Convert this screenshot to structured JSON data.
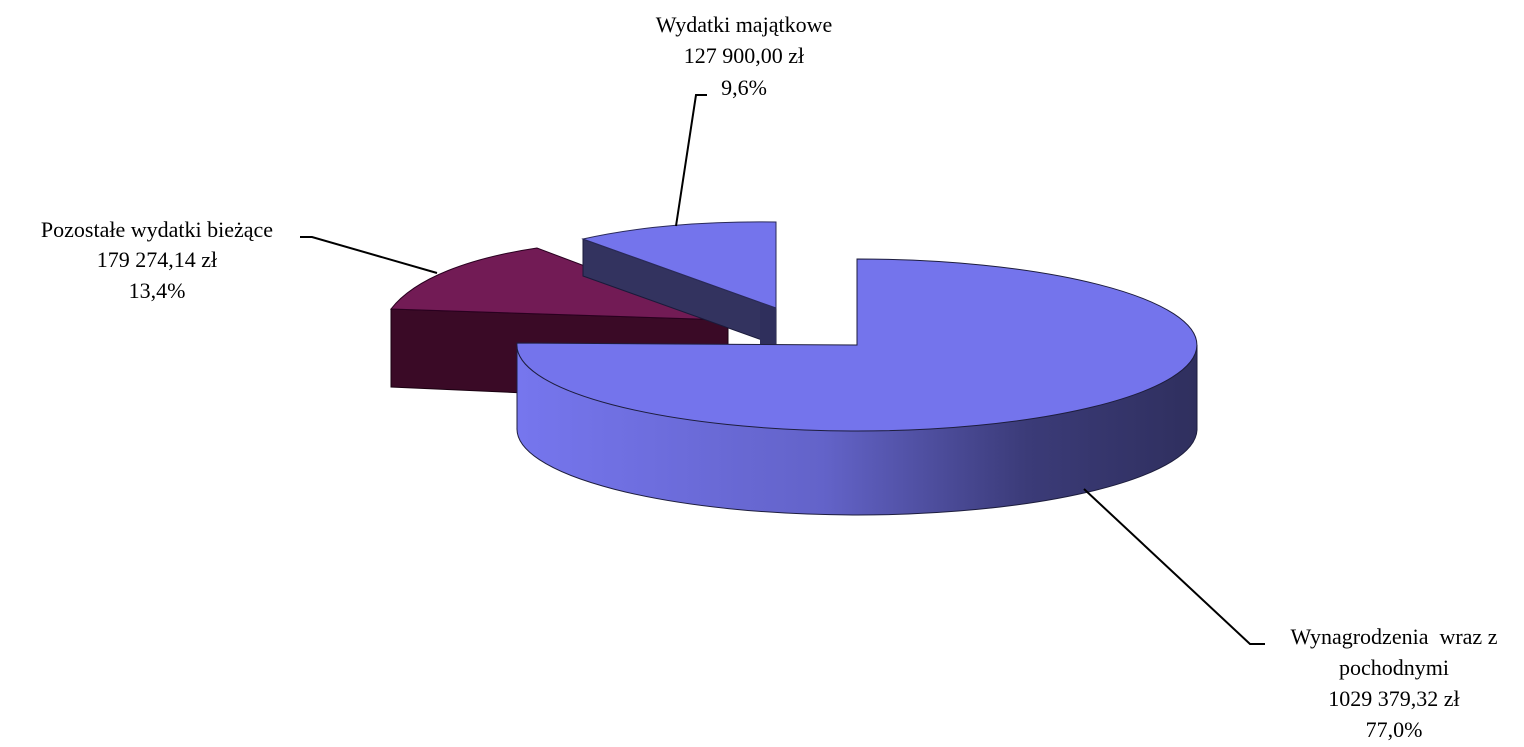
{
  "chart_data": {
    "type": "pie",
    "style": "3d-exploded",
    "currency": "zł",
    "slices": [
      {
        "label_lines": [
          "Wynagrodzenia  wraz z",
          "pochodnymi"
        ],
        "amount_text": "1029 379,32 zł",
        "percent_text": "77,0%",
        "value": 1029379.32,
        "percent": 77.0,
        "color": "#7474ec",
        "side_color": "#33335f",
        "exploded": false
      },
      {
        "label_lines": [
          "Pozostałe wydatki bieżące"
        ],
        "amount_text": "179 274,14 zł",
        "percent_text": "13,4%",
        "value": 179274.14,
        "percent": 13.4,
        "color": "#721b55",
        "side_color": "#3a0a26",
        "exploded": true
      },
      {
        "label_lines": [
          "Wydatki  majątkowe"
        ],
        "amount_text": "127 900,00 zł",
        "percent_text": "9,6%",
        "value": 127900.0,
        "percent": 9.6,
        "color": "#7474ec",
        "side_color": "#33335f",
        "exploded": true
      }
    ]
  }
}
